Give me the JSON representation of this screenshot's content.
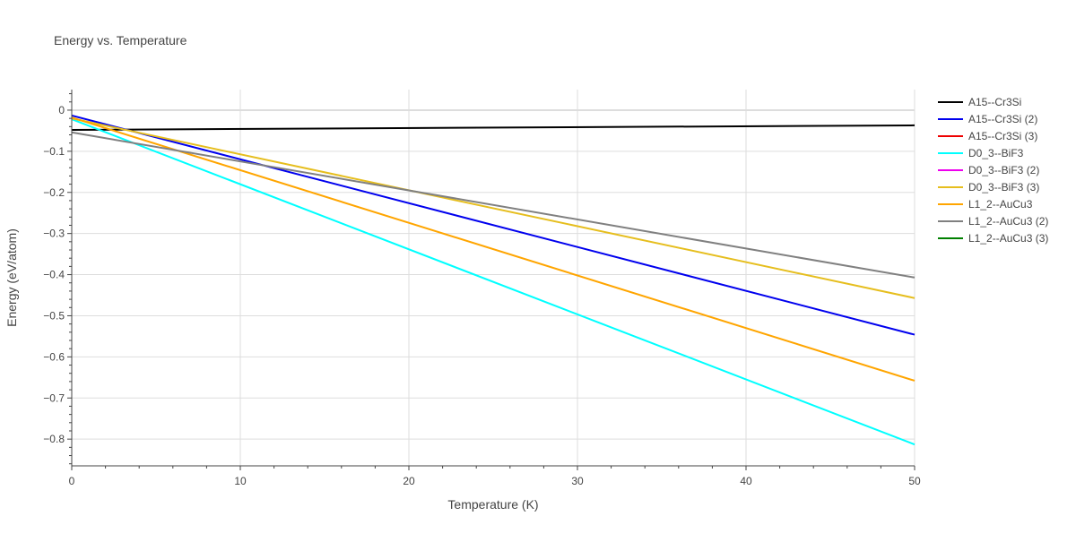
{
  "chart_data": {
    "type": "line",
    "title": "Energy vs. Temperature",
    "xlabel": "Temperature (K)",
    "ylabel": "Energy (eV/atom)",
    "xlim": [
      0,
      50
    ],
    "ylim": [
      -0.865,
      0.05
    ],
    "xticks": [
      0,
      10,
      20,
      30,
      40,
      50
    ],
    "xtick_labels": [
      "0",
      "10",
      "20",
      "30",
      "40",
      "50"
    ],
    "yticks": [
      0,
      -0.1,
      -0.2,
      -0.3,
      -0.4,
      -0.5,
      -0.6,
      -0.7,
      -0.8
    ],
    "ytick_labels": [
      "0",
      "−0.1",
      "−0.2",
      "−0.3",
      "−0.4",
      "−0.5",
      "−0.6",
      "−0.7",
      "−0.8"
    ],
    "grid": true,
    "legend_position": "top-right, outside plot",
    "series": [
      {
        "name": "A15--Cr3Si",
        "color": "#000000",
        "x": [
          0,
          50
        ],
        "y": [
          -0.048,
          -0.037
        ]
      },
      {
        "name": "A15--Cr3Si (2)",
        "color": "#0000ee",
        "x": [
          0,
          50
        ],
        "y": [
          -0.013,
          -0.546
        ]
      },
      {
        "name": "A15--Cr3Si (3)",
        "color": "#ee0000",
        "x": [],
        "y": []
      },
      {
        "name": "D0_3--BiF3",
        "color": "#00ffff",
        "x": [
          0,
          50
        ],
        "y": [
          -0.022,
          -0.813
        ]
      },
      {
        "name": "D0_3--BiF3 (2)",
        "color": "#ee00ee",
        "x": [],
        "y": []
      },
      {
        "name": "D0_3--BiF3 (3)",
        "color": "#e6be1e",
        "x": [
          0,
          50
        ],
        "y": [
          -0.02,
          -0.457
        ]
      },
      {
        "name": "L1_2--AuCu3",
        "color": "#ffa500",
        "x": [
          0,
          50
        ],
        "y": [
          -0.018,
          -0.658
        ]
      },
      {
        "name": "L1_2--AuCu3 (2)",
        "color": "#808080",
        "x": [
          0,
          50
        ],
        "y": [
          -0.054,
          -0.407
        ]
      },
      {
        "name": "L1_2--AuCu3 (3)",
        "color": "#008000",
        "x": [],
        "y": []
      }
    ]
  }
}
